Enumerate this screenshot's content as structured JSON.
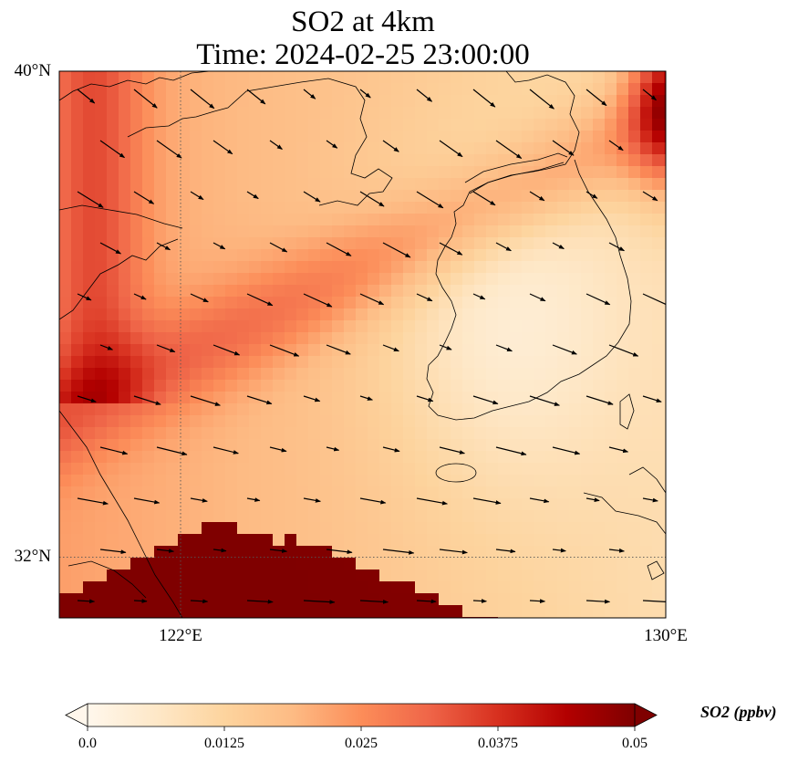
{
  "title": {
    "line1": "SO2 at 4km",
    "line2": "Time: 2024-02-25 23:00:00"
  },
  "map": {
    "extent": {
      "lon_min": 120.0,
      "lon_max": 130.0,
      "lat_min": 31.0,
      "lat_max": 40.0
    },
    "lat_labels": [
      {
        "lat": 40,
        "text": "40°N"
      },
      {
        "lat": 32,
        "text": "32°N"
      }
    ],
    "lon_labels": [
      {
        "lon": 122,
        "text": "122°E"
      },
      {
        "lon": 130,
        "text": "130°E"
      }
    ],
    "gridlines": {
      "lons": [
        122
      ],
      "lats": [
        32
      ],
      "style": "dotted"
    },
    "field": {
      "variable": "SO2",
      "units": "ppbv",
      "description": "SO2 concentration at 4km; high values (>=0.05) in a band over the southwest and low values (~0.01) over Korea",
      "colormap": "OrRd"
    },
    "wind_vectors": "northwesterly to westerly flow, black arrows"
  },
  "colorbar": {
    "label": "SO2 (ppbv)",
    "vmin": 0.0,
    "vmax": 0.05,
    "ticks": [
      "0.0",
      "0.0125",
      "0.025",
      "0.0375",
      "0.05"
    ],
    "extend": "both",
    "colors": [
      "#fff7ec",
      "#fee8c8",
      "#fdd49e",
      "#fdbb84",
      "#fc8d59",
      "#ef6548",
      "#d7301f",
      "#b30000",
      "#7f0000"
    ]
  }
}
